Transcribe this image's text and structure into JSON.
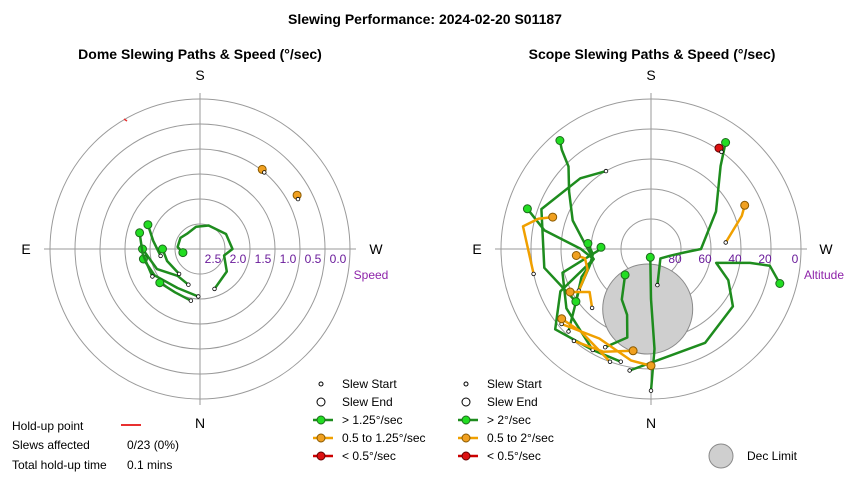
{
  "title": "Slewing Performance: 2024-02-20 S01187",
  "chart_data": [
    {
      "type": "scatter",
      "subtitle": "Dome Slewing Paths & Speed (°/sec)",
      "radial_label": "Speed",
      "radial_direction": "decreasing outward",
      "radial_range": [
        0,
        3.0
      ],
      "radial_ticks": [
        "2.5",
        "2.0",
        "1.5",
        "1.0",
        "0.5",
        "0.0"
      ],
      "cardinals": {
        "top": "S",
        "bottom": "N",
        "left": "E",
        "right": "W"
      },
      "legend": {
        "slew_start": "Slew Start",
        "slew_end": "Slew End",
        "fast": "> 1.25°/sec",
        "medium": "0.5 to 1.25°/sec",
        "slow": "< 0.5°/sec"
      },
      "colors": {
        "fast": "#1e8c1e",
        "medium": "#f0a000",
        "slow": "#cc0000",
        "hold": "#e83030"
      },
      "paths": [
        {
          "speed": "fast",
          "points": [
            [
              162,
              2.25
            ],
            [
              140,
              2.3
            ],
            [
              115,
              2.05
            ],
            [
              90,
              1.85
            ]
          ]
        },
        {
          "speed": "fast",
          "points": [
            [
              178,
              2.05
            ],
            [
              150,
              2.1
            ],
            [
              120,
              1.95
            ],
            [
              100,
              1.85
            ]
          ]
        },
        {
          "speed": "fast",
          "points": [
            [
              200,
              2.15
            ],
            [
              230,
              2.3
            ],
            [
              255,
              2.5
            ],
            [
              270,
              2.35
            ],
            [
              300,
              2.4
            ],
            [
              340,
              2.5
            ],
            [
              10,
              2.55
            ],
            [
              40,
              2.6
            ],
            [
              60,
              2.55
            ],
            [
              85,
              2.55
            ],
            [
              102,
              2.65
            ]
          ]
        },
        {
          "speed": "fast",
          "points": [
            [
              170,
              1.95
            ],
            [
              150,
              2.0
            ],
            [
              130,
              1.95
            ]
          ]
        },
        {
          "speed": "fast",
          "points": [
            [
              120,
              1.9
            ],
            [
              95,
              1.85
            ],
            [
              75,
              1.75
            ]
          ]
        },
        {
          "speed": "fast",
          "points": [
            [
              100,
              2.2
            ],
            [
              80,
              2.05
            ],
            [
              65,
              1.85
            ]
          ]
        },
        {
          "speed": "fast",
          "points": [
            [
              140,
              2.35
            ],
            [
              110,
              2.3
            ],
            [
              90,
              2.25
            ]
          ]
        },
        {
          "speed": "medium",
          "points": [
            [
              297,
              0.8
            ],
            [
              299,
              0.78
            ]
          ]
        },
        {
          "speed": "medium",
          "points": [
            [
              320,
              1.0
            ],
            [
              322,
              0.98
            ]
          ]
        }
      ],
      "hold_up": {
        "label": "Hold-up point"
      },
      "stats": [
        {
          "label": "Slews affected",
          "value": "0/23 (0%)"
        },
        {
          "label": "Total hold-up time",
          "value": "0.1 mins"
        }
      ]
    },
    {
      "type": "scatter",
      "subtitle": "Scope Slewing Paths & Speed (°/sec)",
      "radial_label": "Altitude",
      "radial_range": [
        0,
        90
      ],
      "radial_ticks": [
        "80",
        "60",
        "40",
        "20",
        "0"
      ],
      "cardinals": {
        "top": "S",
        "bottom": "N",
        "left": "E",
        "right": "W"
      },
      "legend": {
        "slew_start": "Slew Start",
        "slew_end": "Slew End",
        "fast": "> 2°/sec",
        "medium": "0.5 to 2°/sec",
        "slow": "< 0.5°/sec",
        "dec_limit": "Dec Limit"
      },
      "colors": {
        "fast": "#1e8c1e",
        "medium": "#f0a000",
        "slow": "#cc0000",
        "dec_limit": "#cfcfcf"
      },
      "dec_limit": {
        "azimuth": 90,
        "altitude": 88,
        "radius_deg": 18
      },
      "paths": [
        {
          "speed": "fast",
          "points": [
            [
              180,
              5
            ],
            [
              182,
              30
            ],
            [
              180,
              60
            ],
            [
              175,
              85
            ]
          ]
        },
        {
          "speed": "fast",
          "points": [
            [
              165,
              20
            ],
            [
              150,
              20
            ],
            [
              130,
              15
            ],
            [
              115,
              30
            ],
            [
              100,
              55
            ],
            [
              85,
              50
            ],
            [
              70,
              40
            ],
            [
              55,
              30
            ],
            [
              45,
              20
            ],
            [
              42,
              10
            ],
            [
              40,
              5
            ]
          ]
        },
        {
          "speed": "fast",
          "points": [
            [
              170,
              16
            ],
            [
              210,
              25
            ],
            [
              235,
              30
            ],
            [
              248,
              40
            ],
            [
              258,
              50
            ],
            [
              262,
              30
            ],
            [
              262,
              18
            ],
            [
              255,
              10
            ]
          ]
        },
        {
          "speed": "fast",
          "points": [
            [
              150,
              20
            ],
            [
              125,
              28
            ],
            [
              105,
              35
            ],
            [
              92,
              58
            ],
            [
              88,
              60
            ]
          ]
        },
        {
          "speed": "fast",
          "points": [
            [
              135,
              20
            ],
            [
              120,
              40
            ],
            [
              105,
              52
            ],
            [
              95,
              55
            ],
            [
              85,
              52
            ]
          ]
        },
        {
          "speed": "fast",
          "points": [
            [
              155,
              25
            ],
            [
              165,
              35
            ],
            [
              160,
              48
            ],
            [
              150,
              55
            ],
            [
              135,
              68
            ]
          ]
        },
        {
          "speed": "fast",
          "points": [
            [
              125,
              35
            ],
            [
              112,
              45
            ],
            [
              100,
              55
            ],
            [
              90,
              48
            ],
            [
              80,
              25
            ],
            [
              72,
              12
            ]
          ]
        },
        {
          "speed": "fast",
          "points": [
            [
              30,
              36
            ],
            [
              45,
              30
            ],
            [
              70,
              20
            ],
            [
              100,
              25
            ],
            [
              125,
              35
            ]
          ]
        },
        {
          "speed": "fast",
          "points": [
            [
              190,
              68
            ],
            [
              225,
              82
            ],
            [
              250,
              78
            ],
            [
              264,
              70
            ],
            [
              270,
              60
            ],
            [
              300,
              45
            ],
            [
              320,
              25
            ],
            [
              325,
              12
            ]
          ]
        },
        {
          "speed": "medium",
          "points": [
            [
              130,
              20
            ],
            [
              150,
              28
            ],
            [
              170,
              22
            ],
            [
              180,
              20
            ]
          ]
        },
        {
          "speed": "medium",
          "points": [
            [
              160,
              18
            ],
            [
              140,
              25
            ],
            [
              128,
              22
            ]
          ]
        },
        {
          "speed": "medium",
          "points": [
            [
              120,
              40
            ],
            [
              108,
              50
            ],
            [
              98,
              50
            ],
            [
              95,
              45
            ]
          ]
        },
        {
          "speed": "medium",
          "points": [
            [
              102,
              18
            ],
            [
              80,
              12
            ],
            [
              75,
              20
            ],
            [
              72,
              28
            ]
          ]
        },
        {
          "speed": "medium",
          "points": [
            [
              135,
              40
            ],
            [
              125,
              45
            ],
            [
              118,
              35
            ]
          ]
        },
        {
          "speed": "medium",
          "points": [
            [
              140,
              18
            ],
            [
              155,
              22
            ],
            [
              170,
              28
            ]
          ]
        },
        {
          "speed": "medium",
          "points": [
            [
              275,
              45
            ],
            [
              290,
              32
            ],
            [
              295,
              28
            ]
          ]
        },
        {
          "speed": "slow",
          "points": [
            [
              324,
              18
            ],
            [
              326,
              17
            ]
          ]
        }
      ]
    }
  ]
}
